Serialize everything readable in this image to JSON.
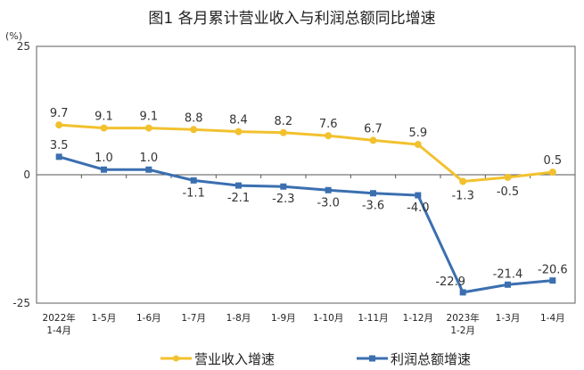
{
  "chart_data": {
    "type": "line",
    "title": "图1  各月累计营业收入与利润总额同比增速",
    "ylabel": "(%)",
    "ylim": [
      -25,
      25
    ],
    "yticks": [
      "25",
      "0",
      "-25"
    ],
    "categories": [
      "2022年\n1-4月",
      "1-5月",
      "1-6月",
      "1-7月",
      "1-8月",
      "1-9月",
      "1-10月",
      "1-11月",
      "1-12月",
      "2023年\n1-2月",
      "1-3月",
      "1-4月"
    ],
    "series": [
      {
        "name": "营业收入增速",
        "color": "#f2c12e",
        "values": [
          9.7,
          9.1,
          9.1,
          8.8,
          8.4,
          8.2,
          7.6,
          6.7,
          5.9,
          -1.3,
          -0.5,
          0.5
        ],
        "labels": [
          "9.7",
          "9.1",
          "9.1",
          "8.8",
          "8.4",
          "8.2",
          "7.6",
          "6.7",
          "5.9",
          "-1.3",
          "-0.5",
          "0.5"
        ]
      },
      {
        "name": "利润总额增速",
        "color": "#3b6fb0",
        "values": [
          3.5,
          1.0,
          1.0,
          -1.1,
          -2.1,
          -2.3,
          -3.0,
          -3.6,
          -4.0,
          -22.9,
          -21.4,
          -20.6
        ],
        "labels": [
          "3.5",
          "1.0",
          "1.0",
          "-1.1",
          "-2.1",
          "-2.3",
          "-3.0",
          "-3.6",
          "-4.0",
          "-22.9",
          "-21.4",
          "-20.6"
        ]
      }
    ],
    "grid": false,
    "legend": "bottom"
  }
}
